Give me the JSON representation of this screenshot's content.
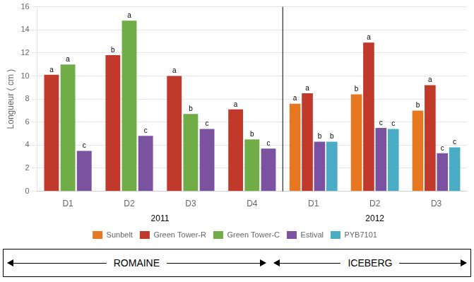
{
  "chart_data": {
    "type": "bar",
    "ylabel": "Longueur ( cm )",
    "categories": [
      "D1",
      "D2",
      "D3",
      "D4",
      "D1",
      "D2",
      "D3"
    ],
    "category_groups": [
      {
        "label": "2011",
        "size": 4
      },
      {
        "label": "2012",
        "size": 3
      }
    ],
    "series": [
      {
        "name": "Sunbelt",
        "color": "#E87722",
        "values": [
          null,
          null,
          null,
          null,
          7.6,
          8.4,
          7.0
        ],
        "bar_annotations": [
          null,
          null,
          null,
          null,
          "a",
          "b",
          "b"
        ]
      },
      {
        "name": "Green Tower-R",
        "color": "#C0392B",
        "values": [
          10.1,
          11.8,
          10.0,
          7.1,
          8.5,
          12.9,
          9.2
        ],
        "bar_annotations": [
          "a",
          "b",
          "a",
          "a",
          "a",
          "a",
          "a"
        ]
      },
      {
        "name": "Green Tower-C",
        "color": "#70AD47",
        "values": [
          11.0,
          14.8,
          6.7,
          4.5,
          null,
          null,
          null
        ],
        "bar_annotations": [
          "a",
          "a",
          "b",
          "b",
          null,
          null,
          null
        ]
      },
      {
        "name": "Estival",
        "color": "#7B52A0",
        "values": [
          3.5,
          4.8,
          5.4,
          3.7,
          4.3,
          5.5,
          3.3
        ],
        "bar_annotations": [
          "c",
          "c",
          "c",
          "c",
          "b",
          "c",
          "c"
        ]
      },
      {
        "name": "PYB7101",
        "color": "#4BACC6",
        "values": [
          null,
          null,
          null,
          null,
          4.3,
          5.4,
          3.8
        ],
        "bar_annotations": [
          null,
          null,
          null,
          null,
          "b",
          "c",
          "c"
        ]
      }
    ],
    "ylim": [
      0,
      16
    ],
    "yticks": [
      0,
      2,
      4,
      6,
      8,
      10,
      12,
      14,
      16
    ],
    "grid": true,
    "legend": "bottom",
    "annotations": [
      "ROMAINE",
      "ICEBERG"
    ]
  }
}
